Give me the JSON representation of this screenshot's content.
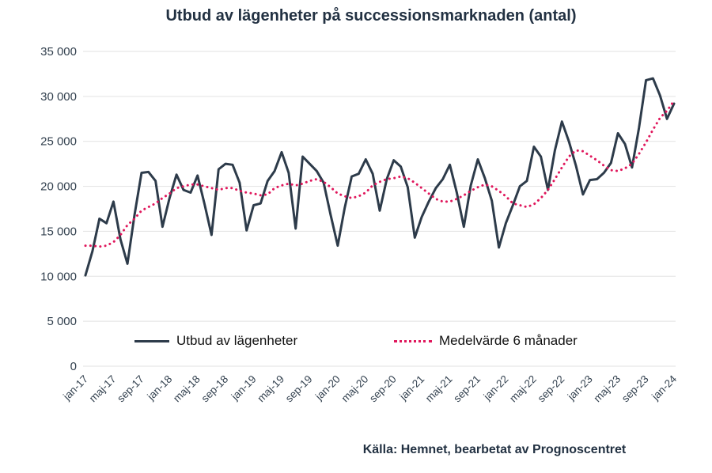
{
  "title": "Utbud av lägenheter på successionsmarknaden (antal)",
  "source": "Källa: Hemnet, bearbetat av Prognoscentret",
  "legend": {
    "series1": "Utbud av lägenheter",
    "series2": "Medelvärde 6 månader"
  },
  "colors": {
    "line": "#2d3b4a",
    "average": "#e0175c",
    "grid": "#e2e2e2",
    "text": "#33414f",
    "title_text": "#223142",
    "legend_text": "#111111",
    "background": "#ffffff"
  },
  "chart_data": {
    "type": "line",
    "title": "Utbud av lägenheter på successionsmarknaden (antal)",
    "xlabel": "",
    "ylabel": "",
    "ylim": [
      0,
      35000
    ],
    "y_tick_step": 5000,
    "y_ticks": [
      "0",
      "5 000",
      "10 000",
      "15 000",
      "20 000",
      "25 000",
      "30 000",
      "35 000"
    ],
    "grid": "horizontal",
    "legend_position": "bottom-inside",
    "tick_interval": 4,
    "x": [
      "jan-17",
      "feb-17",
      "mar-17",
      "apr-17",
      "maj-17",
      "jun-17",
      "jul-17",
      "aug-17",
      "sep-17",
      "okt-17",
      "nov-17",
      "dec-17",
      "jan-18",
      "feb-18",
      "mar-18",
      "apr-18",
      "maj-18",
      "jun-18",
      "jul-18",
      "aug-18",
      "sep-18",
      "okt-18",
      "nov-18",
      "dec-18",
      "jan-19",
      "feb-19",
      "mar-19",
      "apr-19",
      "maj-19",
      "jun-19",
      "jul-19",
      "aug-19",
      "sep-19",
      "okt-19",
      "nov-19",
      "dec-19",
      "jan-20",
      "feb-20",
      "mar-20",
      "apr-20",
      "maj-20",
      "jun-20",
      "jul-20",
      "aug-20",
      "sep-20",
      "okt-20",
      "nov-20",
      "dec-20",
      "jan-21",
      "feb-21",
      "mar-21",
      "apr-21",
      "maj-21",
      "jun-21",
      "jul-21",
      "aug-21",
      "sep-21",
      "okt-21",
      "nov-21",
      "dec-21",
      "jan-22",
      "feb-22",
      "mar-22",
      "apr-22",
      "maj-22",
      "jun-22",
      "jul-22",
      "aug-22",
      "sep-22",
      "okt-22",
      "nov-22",
      "dec-22",
      "jan-23",
      "feb-23",
      "mar-23",
      "apr-23",
      "maj-23",
      "jun-23",
      "jul-23",
      "aug-23",
      "sep-23",
      "okt-23",
      "nov-23",
      "dec-23",
      "jan-24"
    ],
    "series": [
      {
        "name": "Utbud av lägenheter",
        "style": "solid",
        "color": "#2d3b4a",
        "values": [
          10100,
          12800,
          16400,
          15900,
          18300,
          14100,
          11400,
          16800,
          21500,
          21600,
          20600,
          15500,
          18700,
          21300,
          19600,
          19300,
          21200,
          18000,
          14600,
          21900,
          22500,
          22400,
          20400,
          15100,
          17900,
          18100,
          20600,
          21700,
          23800,
          21500,
          15300,
          23300,
          22500,
          21700,
          20400,
          16800,
          13400,
          17600,
          21100,
          21400,
          23000,
          21400,
          17300,
          20800,
          22900,
          22200,
          19900,
          14300,
          16600,
          18300,
          19800,
          20800,
          22400,
          19300,
          15500,
          20100,
          23000,
          20900,
          18400,
          13200,
          15900,
          17900,
          20000,
          20600,
          24400,
          23300,
          19600,
          24000,
          27200,
          25000,
          22300,
          19100,
          20700,
          20800,
          21500,
          22600,
          25900,
          24700,
          22100,
          26500,
          31800,
          32000,
          30100,
          27500,
          29200
        ]
      },
      {
        "name": "Medelvärde 6 månader",
        "style": "dotted",
        "color": "#e0175c",
        "values": [
          13400,
          13400,
          13300,
          13400,
          13800,
          14600,
          15700,
          16400,
          17300,
          17700,
          18100,
          18700,
          19200,
          19800,
          20000,
          20200,
          20200,
          20000,
          19800,
          19600,
          19800,
          19800,
          19500,
          19300,
          19200,
          19000,
          19100,
          19800,
          20100,
          20300,
          20100,
          20300,
          20600,
          20800,
          20500,
          19900,
          19200,
          18900,
          18700,
          18900,
          19300,
          20100,
          20500,
          20800,
          20900,
          21100,
          20900,
          20400,
          19800,
          19200,
          18600,
          18300,
          18300,
          18600,
          19000,
          19500,
          19900,
          20200,
          20000,
          19500,
          18900,
          18100,
          17900,
          17700,
          18000,
          18700,
          19600,
          20800,
          22100,
          23300,
          24000,
          23900,
          23400,
          22900,
          22300,
          21800,
          21700,
          22000,
          22500,
          23600,
          24900,
          26300,
          27600,
          28400,
          29500
        ]
      }
    ]
  }
}
